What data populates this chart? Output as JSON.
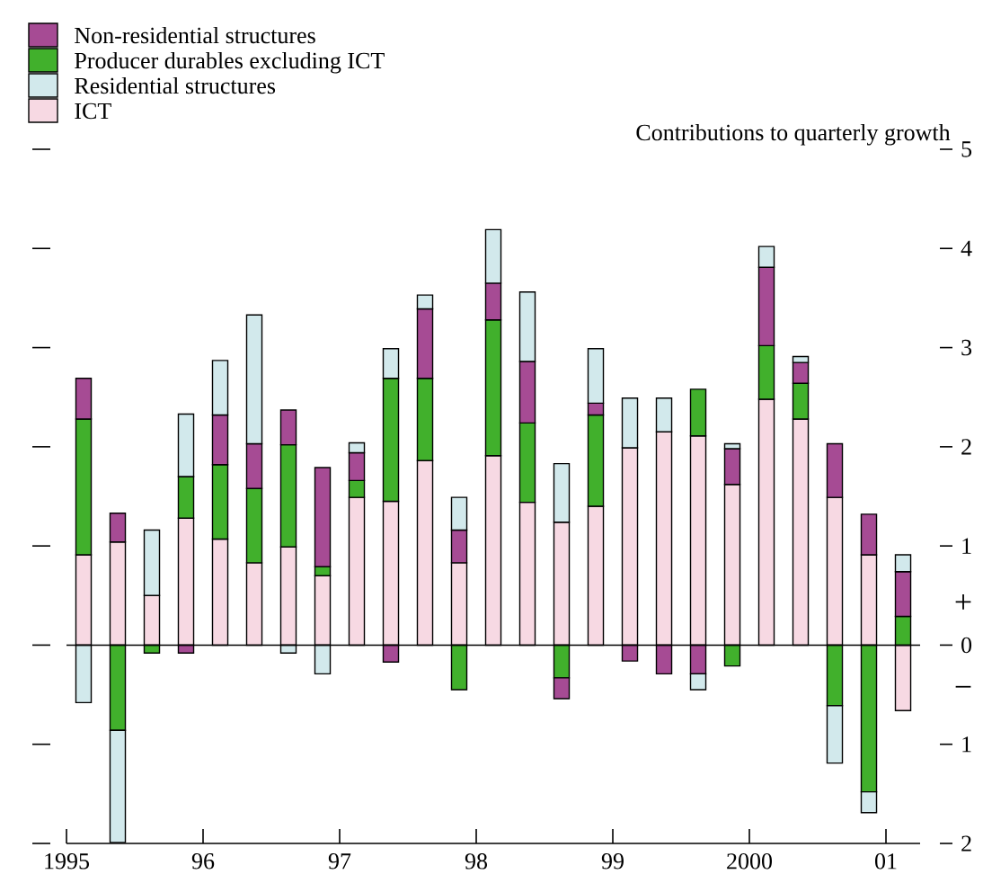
{
  "chart_data": {
    "type": "bar",
    "stacked": true,
    "title": "Contributions to quarterly growth",
    "x": [
      1995.125,
      1995.375,
      1995.625,
      1995.875,
      1996.125,
      1996.375,
      1996.625,
      1996.875,
      1997.125,
      1997.375,
      1997.625,
      1997.875,
      1998.125,
      1998.375,
      1998.625,
      1998.875,
      1999.125,
      1999.375,
      1999.625,
      1999.875,
      2000.125,
      2000.375,
      2000.625,
      2000.875,
      2001.125
    ],
    "series": [
      {
        "name": "ICT",
        "color": "#f7d9e3",
        "values": [
          0.91,
          1.04,
          0.5,
          1.28,
          1.07,
          0.83,
          0.99,
          0.7,
          1.49,
          1.45,
          1.86,
          0.83,
          1.91,
          1.44,
          1.24,
          1.4,
          1.99,
          2.15,
          2.11,
          1.62,
          2.48,
          2.28,
          1.49,
          0.91,
          -0.66
        ]
      },
      {
        "name": "Producer durables excluding ICT",
        "color": "#41b02c",
        "values": [
          1.37,
          -0.86,
          -0.08,
          0.42,
          0.75,
          0.75,
          1.03,
          0.09,
          0.17,
          1.24,
          0.83,
          -0.45,
          1.37,
          0.8,
          -0.33,
          0.92,
          0,
          0,
          0.47,
          -0.21,
          0.54,
          0.36,
          -0.61,
          -1.48,
          0.29
        ]
      },
      {
        "name": "Non-residential structures",
        "color": "#a64b94",
        "values": [
          0.41,
          0.29,
          0,
          -0.08,
          0.5,
          0.45,
          0.35,
          1.0,
          0.28,
          -0.17,
          0.7,
          0.33,
          0.37,
          0.62,
          -0.21,
          0.12,
          -0.16,
          -0.29,
          -0.29,
          0.36,
          0.79,
          0.21,
          0.54,
          0.41,
          0.45
        ]
      },
      {
        "name": "Residential structures",
        "color": "#d2e9ec",
        "values": [
          -0.58,
          -1.13,
          0.66,
          0.63,
          0.55,
          1.3,
          -0.08,
          -0.29,
          0.1,
          0.3,
          0.14,
          0.33,
          0.54,
          0.7,
          0.59,
          0.55,
          0.5,
          0.34,
          -0.16,
          0.05,
          0.21,
          0.06,
          -0.58,
          -0.21,
          0.17
        ]
      }
    ],
    "xlim": [
      1995,
      2001.25
    ],
    "ylim": [
      -2,
      5
    ],
    "xticks": [
      {
        "value": 1995,
        "label": "1995"
      },
      {
        "value": 1996,
        "label": "96"
      },
      {
        "value": 1997,
        "label": "97"
      },
      {
        "value": 1998,
        "label": "98"
      },
      {
        "value": 1999,
        "label": "99"
      },
      {
        "value": 2000,
        "label": "2000"
      },
      {
        "value": 2001,
        "label": "01"
      }
    ],
    "yticks": [
      {
        "value": -2,
        "label": "2"
      },
      {
        "value": -1,
        "label": "1"
      },
      0,
      1,
      2,
      3,
      4,
      5
    ],
    "ref_lines": [
      {
        "axis": "y",
        "value": 0
      }
    ],
    "annotations": [
      "+",
      "−"
    ],
    "legend": "top left"
  }
}
